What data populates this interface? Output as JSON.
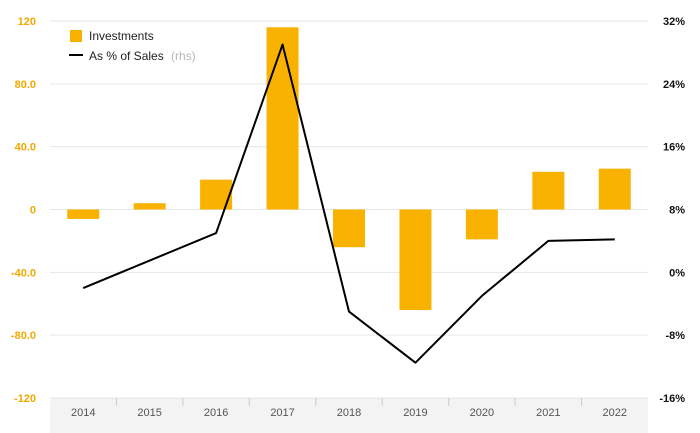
{
  "chart_data": {
    "type": "bar+line",
    "categories": [
      "2014",
      "2015",
      "2016",
      "2017",
      "2018",
      "2019",
      "2020",
      "2021",
      "2022"
    ],
    "series": [
      {
        "name": "Investments",
        "type": "bar",
        "axis": "left",
        "values": [
          -6,
          4,
          19,
          116,
          -24,
          -64,
          -19,
          24,
          26
        ]
      },
      {
        "name": "As % of Sales",
        "type": "line",
        "axis": "right",
        "values": [
          -2,
          1.5,
          5,
          29,
          -5,
          -11.5,
          -3,
          4,
          4.2
        ]
      }
    ],
    "left_axis": {
      "ylim": [
        -120,
        120
      ],
      "ticks": [
        -120,
        -80,
        -40,
        0,
        40,
        80,
        120
      ],
      "tick_labels": [
        "-120",
        "-80.0",
        "-40.0",
        "0",
        "40.0",
        "80.0",
        "120"
      ]
    },
    "right_axis": {
      "ylim": [
        -16,
        32
      ],
      "ticks": [
        -16,
        -8,
        0,
        8,
        16,
        24,
        32
      ],
      "tick_labels": [
        "-16%",
        "-8%",
        "0%",
        "8%",
        "16%",
        "24%",
        "32%"
      ]
    },
    "legend": {
      "placement": "top-left",
      "bar_label": "Investments",
      "line_label": "As % of Sales",
      "line_suffix": "(rhs)"
    },
    "grid": true,
    "colors": {
      "bar": "#f9b200",
      "line": "#000000",
      "left_tick": "#f2a900",
      "grid": "#e6e6e6",
      "axis_band": "#f3f3f3"
    }
  }
}
